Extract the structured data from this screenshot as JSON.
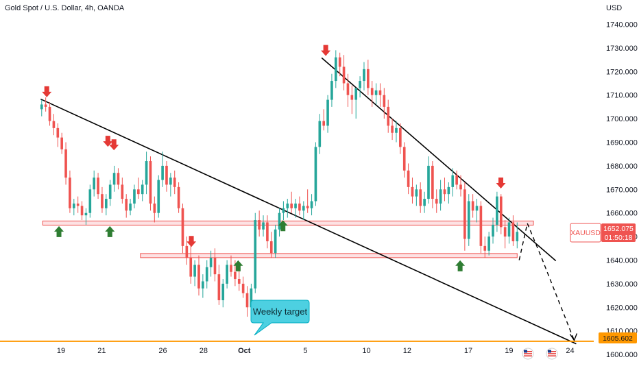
{
  "chart_data": {
    "type": "candlestick",
    "title": "Gold Spot / U.S. Dollar, 4h, OANDA",
    "currency": "USD",
    "symbol": "XAUUSD",
    "last_price": "1652.075",
    "countdown": "01:50:18",
    "target_price": "1605.602",
    "annotation": "Weekly target",
    "y_ticks": [
      1600,
      1610,
      1620,
      1630,
      1640,
      1650,
      1660,
      1670,
      1680,
      1690,
      1700,
      1710,
      1720,
      1730,
      1740
    ],
    "y_tick_labels": [
      "1600.000",
      "1610.000",
      "1620.000",
      "1630.000",
      "1640.000",
      "1650.000",
      "1660.000",
      "1670.000",
      "1680.000",
      "1690.000",
      "1700.000",
      "1710.000",
      "1720.000",
      "1730.000",
      "1740.000"
    ],
    "ylim": [
      1596.5,
      1744
    ],
    "x_ticks": [
      {
        "label": "19",
        "day": 0
      },
      {
        "label": "21",
        "day": 2
      },
      {
        "label": "26",
        "day": 5
      },
      {
        "label": "28",
        "day": 7
      },
      {
        "label": "Oct",
        "day": 9
      },
      {
        "label": "5",
        "day": 12
      },
      {
        "label": "10",
        "day": 15
      },
      {
        "label": "12",
        "day": 17
      },
      {
        "label": "17",
        "day": 20
      },
      {
        "label": "19",
        "day": 22
      },
      {
        "label": "24",
        "day": 25
      }
    ],
    "support_zones": [
      {
        "from_day": -0.9,
        "to_day": 23.2,
        "low": 1655.3,
        "high": 1656.6
      },
      {
        "from_day": 3.9,
        "to_day": 22.4,
        "low": 1641.5,
        "high": 1642.8
      }
    ],
    "trendlines": [
      {
        "x1": -1.0,
        "y1": 1708.3,
        "x2": 25.3,
        "y2": 1604.5
      },
      {
        "x1": 12.8,
        "y1": 1725.8,
        "x2": 24.3,
        "y2": 1639.7
      }
    ],
    "projection": [
      {
        "day": 22.5,
        "price": 1640.0
      },
      {
        "day": 22.9,
        "price": 1655.6
      },
      {
        "day": 23.6,
        "price": 1641.0
      },
      {
        "day": 25.2,
        "price": 1606.0
      }
    ],
    "down_arrows": [
      {
        "day": -0.7,
        "price": 1708.5
      },
      {
        "day": 2.3,
        "price": 1687.5
      },
      {
        "day": 2.6,
        "price": 1686.0
      },
      {
        "day": 6.4,
        "price": 1645.0
      },
      {
        "day": 13.0,
        "price": 1726.0
      },
      {
        "day": 21.6,
        "price": 1669.8
      }
    ],
    "up_arrows": [
      {
        "day": -0.1,
        "price": 1655.0
      },
      {
        "day": 2.4,
        "price": 1655.0
      },
      {
        "day": 8.7,
        "price": 1640.5
      },
      {
        "day": 10.9,
        "price": 1657.5
      },
      {
        "day": 19.6,
        "price": 1640.5
      }
    ],
    "candles": [
      [
        1704,
        1708,
        1701,
        1706
      ],
      [
        1706,
        1709,
        1703,
        1705
      ],
      [
        1705,
        1707,
        1697,
        1699
      ],
      [
        1699,
        1702,
        1693,
        1696
      ],
      [
        1696,
        1698,
        1688,
        1692
      ],
      [
        1692,
        1694,
        1685,
        1687
      ],
      [
        1687,
        1690,
        1672,
        1675
      ],
      [
        1675,
        1678,
        1660,
        1662
      ],
      [
        1662,
        1666,
        1659,
        1664
      ],
      [
        1664,
        1667,
        1660,
        1663
      ],
      [
        1663,
        1665,
        1657,
        1659
      ],
      [
        1659,
        1662,
        1655,
        1660
      ],
      [
        1660,
        1672,
        1658,
        1670
      ],
      [
        1670,
        1678,
        1667,
        1675
      ],
      [
        1675,
        1677,
        1666,
        1668
      ],
      [
        1668,
        1671,
        1660,
        1662
      ],
      [
        1662,
        1668,
        1659,
        1666
      ],
      [
        1666,
        1674,
        1663,
        1672
      ],
      [
        1672,
        1680,
        1669,
        1677
      ],
      [
        1677,
        1679,
        1670,
        1672
      ],
      [
        1672,
        1675,
        1664,
        1666
      ],
      [
        1666,
        1668,
        1658,
        1661
      ],
      [
        1661,
        1666,
        1659,
        1664
      ],
      [
        1664,
        1672,
        1662,
        1670
      ],
      [
        1670,
        1675,
        1666,
        1668
      ],
      [
        1668,
        1674,
        1665,
        1672
      ],
      [
        1672,
        1686,
        1668,
        1682
      ],
      [
        1682,
        1684,
        1661,
        1664
      ],
      [
        1664,
        1667,
        1656,
        1660
      ],
      [
        1660,
        1676,
        1658,
        1674
      ],
      [
        1674,
        1686,
        1671,
        1680
      ],
      [
        1680,
        1682,
        1669,
        1672
      ],
      [
        1672,
        1677,
        1667,
        1675
      ],
      [
        1675,
        1678,
        1668,
        1671
      ],
      [
        1671,
        1673,
        1660,
        1662
      ],
      [
        1662,
        1664,
        1643,
        1646
      ],
      [
        1646,
        1650,
        1638,
        1641
      ],
      [
        1641,
        1648,
        1630,
        1633
      ],
      [
        1633,
        1640,
        1629,
        1638
      ],
      [
        1638,
        1642,
        1625,
        1628
      ],
      [
        1628,
        1634,
        1624,
        1631
      ],
      [
        1631,
        1640,
        1628,
        1637
      ],
      [
        1637,
        1644,
        1633,
        1641
      ],
      [
        1641,
        1645,
        1631,
        1634
      ],
      [
        1634,
        1638,
        1621,
        1623
      ],
      [
        1623,
        1632,
        1620,
        1630
      ],
      [
        1630,
        1640,
        1628,
        1638
      ],
      [
        1638,
        1642,
        1633,
        1635
      ],
      [
        1635,
        1640,
        1629,
        1632
      ],
      [
        1632,
        1637,
        1627,
        1630
      ],
      [
        1630,
        1633,
        1624,
        1626
      ],
      [
        1626,
        1629,
        1616,
        1620
      ],
      [
        1620,
        1630,
        1618,
        1628
      ],
      [
        1628,
        1660,
        1626,
        1657
      ],
      [
        1657,
        1661,
        1650,
        1653
      ],
      [
        1653,
        1659,
        1650,
        1656
      ],
      [
        1656,
        1659,
        1645,
        1648
      ],
      [
        1648,
        1652,
        1641,
        1643
      ],
      [
        1643,
        1655,
        1641,
        1653
      ],
      [
        1653,
        1662,
        1650,
        1660
      ],
      [
        1660,
        1665,
        1657,
        1662
      ],
      [
        1662,
        1666,
        1658,
        1664
      ],
      [
        1664,
        1669,
        1660,
        1662
      ],
      [
        1662,
        1666,
        1658,
        1664
      ],
      [
        1664,
        1667,
        1659,
        1661
      ],
      [
        1661,
        1665,
        1657,
        1663
      ],
      [
        1663,
        1670,
        1660,
        1662
      ],
      [
        1662,
        1668,
        1659,
        1665
      ],
      [
        1665,
        1690,
        1663,
        1688
      ],
      [
        1688,
        1702,
        1685,
        1699
      ],
      [
        1699,
        1704,
        1695,
        1697
      ],
      [
        1697,
        1710,
        1694,
        1708
      ],
      [
        1708,
        1719,
        1705,
        1716
      ],
      [
        1716,
        1729,
        1713,
        1726
      ],
      [
        1726,
        1728,
        1718,
        1722
      ],
      [
        1722,
        1727,
        1712,
        1715
      ],
      [
        1715,
        1719,
        1705,
        1710
      ],
      [
        1710,
        1714,
        1702,
        1708
      ],
      [
        1708,
        1712,
        1700,
        1713
      ],
      [
        1713,
        1718,
        1709,
        1716
      ],
      [
        1716,
        1724,
        1712,
        1721
      ],
      [
        1721,
        1725,
        1710,
        1713
      ],
      [
        1713,
        1716,
        1705,
        1710
      ],
      [
        1710,
        1715,
        1706,
        1712
      ],
      [
        1712,
        1715,
        1705,
        1710
      ],
      [
        1710,
        1713,
        1700,
        1705
      ],
      [
        1705,
        1708,
        1694,
        1697
      ],
      [
        1697,
        1700,
        1691,
        1694
      ],
      [
        1694,
        1699,
        1690,
        1696
      ],
      [
        1696,
        1698,
        1685,
        1688
      ],
      [
        1688,
        1690,
        1675,
        1678
      ],
      [
        1678,
        1681,
        1668,
        1671
      ],
      [
        1671,
        1675,
        1664,
        1667
      ],
      [
        1667,
        1672,
        1663,
        1670
      ],
      [
        1670,
        1673,
        1660,
        1663
      ],
      [
        1663,
        1669,
        1660,
        1666
      ],
      [
        1666,
        1684,
        1664,
        1680
      ],
      [
        1680,
        1682,
        1662,
        1666
      ],
      [
        1666,
        1670,
        1660,
        1664
      ],
      [
        1664,
        1674,
        1661,
        1670
      ],
      [
        1670,
        1675,
        1665,
        1668
      ],
      [
        1668,
        1673,
        1664,
        1671
      ],
      [
        1671,
        1679,
        1667,
        1676
      ],
      [
        1676,
        1678,
        1670,
        1672
      ],
      [
        1672,
        1676,
        1667,
        1670
      ],
      [
        1670,
        1673,
        1644,
        1649
      ],
      [
        1649,
        1668,
        1646,
        1665
      ],
      [
        1665,
        1668,
        1658,
        1661
      ],
      [
        1661,
        1666,
        1656,
        1663
      ],
      [
        1663,
        1665,
        1643,
        1646
      ],
      [
        1646,
        1650,
        1641,
        1644
      ],
      [
        1644,
        1652,
        1642,
        1650
      ],
      [
        1650,
        1658,
        1647,
        1655
      ],
      [
        1655,
        1669,
        1652,
        1667
      ],
      [
        1667,
        1668,
        1651,
        1654
      ],
      [
        1654,
        1657,
        1645,
        1650
      ],
      [
        1650,
        1658,
        1647,
        1656
      ],
      [
        1656,
        1659,
        1646,
        1648
      ],
      [
        1648,
        1656,
        1645,
        1652
      ]
    ]
  },
  "timer_icons": [
    "us-flag-icon",
    "us-flag-icon"
  ],
  "colors": {
    "up": "#26a69a",
    "down": "#ef5350",
    "zone_fill": "#fde2e4",
    "zone_border": "#ef5350",
    "trendline": "#000000",
    "target_line": "#ff9800",
    "target_label": "#ff9800",
    "price_label": "#ef5350",
    "callout_fill": "#4dd0e1",
    "callout_border": "#00acc1",
    "arrow_down": "#e53935",
    "arrow_up": "#2e7d32"
  }
}
